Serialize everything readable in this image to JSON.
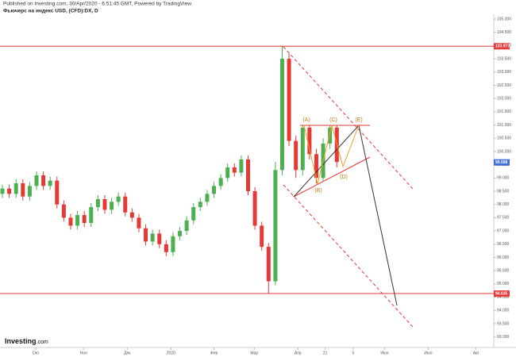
{
  "header": {
    "published": "Published on Investing.com, 30/Apr/2020 - 6:51:45 GMT, Powered by TradingView.",
    "logo": "Investing",
    "logo_suffix": ".com"
  },
  "chart_data": {
    "type": "candlestick",
    "title": "Фьючерс на индекс USD, (CFD):DX, D",
    "x": [
      0,
      1,
      2,
      3,
      4,
      5,
      6,
      7,
      8,
      9,
      10,
      11,
      12,
      13,
      14,
      15,
      16,
      17,
      18,
      19,
      20,
      21,
      22,
      23,
      24,
      25,
      26,
      27,
      28,
      29,
      30,
      31,
      32,
      33,
      34,
      35,
      36,
      37,
      38,
      39,
      40,
      41,
      42,
      43,
      44,
      45,
      46,
      47,
      48,
      49
    ],
    "open": [
      98.4,
      98.6,
      98.4,
      98.8,
      98.3,
      98.7,
      99.1,
      98.7,
      98.9,
      98.0,
      97.5,
      97.2,
      97.6,
      97.3,
      97.9,
      98.2,
      97.8,
      98.1,
      98.3,
      97.7,
      97.5,
      97.1,
      96.6,
      96.9,
      96.5,
      96.2,
      96.8,
      97.0,
      97.4,
      97.9,
      98.1,
      98.4,
      98.7,
      99.0,
      99.4,
      99.2,
      99.7,
      98.5,
      97.2,
      96.4,
      95.1,
      99.3,
      103.5,
      100.4,
      99.3,
      100.9,
      99.9,
      99.0,
      100.3,
      100.9
    ],
    "high": [
      98.75,
      98.75,
      98.95,
      98.95,
      98.85,
      99.25,
      99.25,
      99.05,
      99.05,
      98.15,
      97.65,
      97.75,
      97.75,
      98.05,
      98.35,
      98.35,
      98.25,
      98.45,
      98.45,
      97.85,
      97.65,
      97.25,
      97.05,
      97.05,
      96.65,
      96.95,
      97.15,
      97.55,
      98.05,
      98.25,
      98.55,
      98.85,
      99.15,
      99.55,
      99.55,
      99.85,
      99.85,
      98.65,
      97.35,
      96.55,
      99.6,
      103.97,
      103.7,
      100.6,
      101.0,
      101.0,
      100.1,
      100.5,
      101.0,
      101.0
    ],
    "low": [
      98.25,
      98.25,
      98.25,
      98.15,
      98.15,
      98.55,
      98.55,
      98.55,
      97.85,
      97.35,
      97.05,
      97.05,
      97.15,
      97.15,
      97.75,
      97.65,
      97.65,
      97.95,
      97.55,
      97.35,
      96.95,
      96.45,
      96.45,
      96.35,
      96.05,
      96.05,
      96.65,
      96.85,
      97.25,
      97.75,
      97.95,
      98.25,
      98.55,
      98.85,
      99.05,
      99.05,
      98.35,
      97.05,
      96.25,
      94.63,
      94.95,
      99.1,
      100.2,
      99.0,
      99.1,
      99.7,
      98.8,
      98.9,
      100.1,
      99.4
    ],
    "close": [
      98.6,
      98.4,
      98.8,
      98.3,
      98.7,
      99.1,
      98.7,
      98.9,
      98.0,
      97.5,
      97.2,
      97.6,
      97.3,
      97.9,
      98.2,
      97.8,
      98.1,
      98.3,
      97.7,
      97.5,
      97.1,
      96.6,
      96.9,
      96.5,
      96.2,
      96.8,
      97.0,
      97.4,
      97.9,
      98.1,
      98.4,
      98.7,
      99.0,
      99.4,
      99.2,
      99.7,
      98.5,
      97.2,
      96.4,
      95.1,
      99.3,
      103.5,
      100.4,
      99.3,
      100.9,
      99.9,
      99.0,
      100.3,
      100.9,
      99.6
    ],
    "up_color": "#4caf50",
    "down_color": "#e53935",
    "xlim": [
      -0.35,
      72
    ],
    "xticks": [
      {
        "value": 4.9,
        "label": "Окт"
      },
      {
        "value": 11.9,
        "label": "Ноя"
      },
      {
        "value": 18.3,
        "label": "Дек"
      },
      {
        "value": 24.7,
        "label": "2020"
      },
      {
        "value": 31,
        "label": "Фев"
      },
      {
        "value": 36.9,
        "label": "Мар"
      },
      {
        "value": 43.3,
        "label": "Апр"
      },
      {
        "value": 47.3,
        "label": "21"
      },
      {
        "value": 51.4,
        "label": "5"
      },
      {
        "value": 56,
        "label": "Июн"
      },
      {
        "value": 62.4,
        "label": "Июл"
      },
      {
        "value": 69.4,
        "label": "Авг"
      }
    ],
    "ylim": [
      92.6,
      105.3
    ],
    "yticks": [
      {
        "value": 105,
        "label": "105.000"
      },
      {
        "value": 104.5,
        "label": "104.500"
      },
      {
        "value": 104,
        "label": "104.000"
      },
      {
        "value": 103.5,
        "label": "103.500"
      },
      {
        "value": 103,
        "label": "103.000"
      },
      {
        "value": 102.5,
        "label": "102.500"
      },
      {
        "value": 102,
        "label": "102.000"
      },
      {
        "value": 101.5,
        "label": "101.500"
      },
      {
        "value": 101,
        "label": "101.000"
      },
      {
        "value": 100.5,
        "label": "100.500"
      },
      {
        "value": 100,
        "label": "100.000"
      },
      {
        "value": 99.5,
        "label": "99.500"
      },
      {
        "value": 99,
        "label": "99.000"
      },
      {
        "value": 98.5,
        "label": "98.500"
      },
      {
        "value": 98,
        "label": "98.000"
      },
      {
        "value": 97.5,
        "label": "97.500"
      },
      {
        "value": 97,
        "label": "97.000"
      },
      {
        "value": 96.5,
        "label": "96.500"
      },
      {
        "value": 96,
        "label": "96.000"
      },
      {
        "value": 95.5,
        "label": "95.500"
      },
      {
        "value": 95,
        "label": "95.000"
      },
      {
        "value": 94.5,
        "label": "94.500"
      },
      {
        "value": 94,
        "label": "94.000"
      },
      {
        "value": 93.5,
        "label": "93.500"
      },
      {
        "value": 93,
        "label": "93.000"
      }
    ],
    "hlines": [
      {
        "value": 103.973,
        "label": "103.973",
        "color": "#e53935"
      },
      {
        "value": 94.635,
        "label": "94.635",
        "color": "#e53935"
      }
    ],
    "last_price": {
      "value": 99.588,
      "label": "99.588",
      "color": "#3d6fd6"
    },
    "annotations": [
      "(A)",
      "(B)",
      "(C)",
      "(D)",
      "(E)"
    ]
  }
}
